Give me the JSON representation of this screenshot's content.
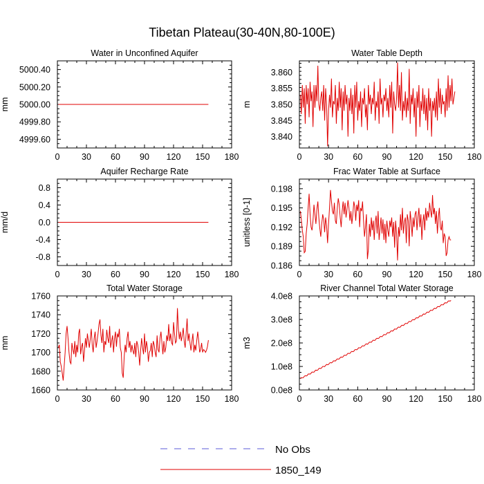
{
  "page": {
    "title": "Tibetan Plateau(30-40N,80-100E)"
  },
  "legend": {
    "items": [
      {
        "label": "No Obs",
        "color": "#5a5ad8",
        "dashed": true
      },
      {
        "label": "1850_149",
        "color": "#e00000",
        "dashed": false
      }
    ]
  },
  "colors": {
    "series": "#e00000",
    "axis": "#000000"
  },
  "chart_data": [
    {
      "type": "line",
      "title": "Water in Unconfined Aquifer",
      "ylabel": "mm",
      "xlim": [
        0,
        180
      ],
      "ylim": [
        4999.5,
        5000.5
      ],
      "xticks": [
        0,
        30,
        60,
        90,
        120,
        150,
        180
      ],
      "xtick_labels": [
        "0",
        "30",
        "60",
        "90",
        "120",
        "150",
        "180"
      ],
      "yticks": [
        4999.6,
        4999.8,
        5000.0,
        5000.2,
        5000.4
      ],
      "ytick_labels": [
        "4999.60",
        "4999.80",
        "5000.00",
        "5000.20",
        "5000.40"
      ],
      "series": [
        {
          "name": "1850_149",
          "x_start": 1,
          "x_step": 1,
          "constant": 5000.0,
          "count": 156
        }
      ]
    },
    {
      "type": "line",
      "title": "Water Table Depth",
      "ylabel": "m",
      "xlim": [
        0,
        180
      ],
      "ylim": [
        3.8365,
        3.8635
      ],
      "xticks": [
        0,
        30,
        60,
        90,
        120,
        150,
        180
      ],
      "xtick_labels": [
        "0",
        "30",
        "60",
        "90",
        "120",
        "150",
        "180"
      ],
      "yticks": [
        3.84,
        3.845,
        3.85,
        3.855,
        3.86
      ],
      "ytick_labels": [
        "3.840",
        "3.845",
        "3.850",
        "3.855",
        "3.860"
      ],
      "series": [
        {
          "name": "1850_149",
          "x_start": 1,
          "x_step": 1,
          "values": [
            3.853,
            3.847,
            3.856,
            3.849,
            3.855,
            3.844,
            3.856,
            3.85,
            3.855,
            3.846,
            3.857,
            3.851,
            3.854,
            3.843,
            3.856,
            3.849,
            3.856,
            3.851,
            3.862,
            3.85,
            3.848,
            3.852,
            3.854,
            3.848,
            3.856,
            3.845,
            3.855,
            3.85,
            3.837,
            3.848,
            3.853,
            3.849,
            3.858,
            3.846,
            3.851,
            3.85,
            3.856,
            3.844,
            3.852,
            3.848,
            3.857,
            3.849,
            3.855,
            3.842,
            3.854,
            3.848,
            3.856,
            3.85,
            3.853,
            3.84,
            3.852,
            3.848,
            3.855,
            3.847,
            3.853,
            3.841,
            3.856,
            3.849,
            3.857,
            3.845,
            3.851,
            3.848,
            3.854,
            3.843,
            3.852,
            3.85,
            3.855,
            3.846,
            3.85,
            3.842,
            3.856,
            3.85,
            3.853,
            3.847,
            3.852,
            3.85,
            3.857,
            3.845,
            3.851,
            3.849,
            3.854,
            3.844,
            3.858,
            3.85,
            3.852,
            3.846,
            3.853,
            3.851,
            3.855,
            3.848,
            3.852,
            3.846,
            3.856,
            3.849,
            3.857,
            3.841,
            3.854,
            3.85,
            3.848,
            3.852,
            3.863,
            3.849,
            3.856,
            3.848,
            3.86,
            3.845,
            3.851,
            3.848,
            3.854,
            3.846,
            3.852,
            3.848,
            3.861,
            3.844,
            3.853,
            3.85,
            3.855,
            3.846,
            3.852,
            3.84,
            3.854,
            3.849,
            3.856,
            3.843,
            3.851,
            3.848,
            3.855,
            3.847,
            3.853,
            3.845,
            3.852,
            3.842,
            3.855,
            3.848,
            3.852,
            3.84,
            3.851,
            3.848,
            3.852,
            3.846,
            3.854,
            3.845,
            3.858,
            3.849,
            3.855,
            3.847,
            3.853,
            3.85,
            3.851,
            3.846,
            3.855,
            3.848,
            3.859,
            3.849,
            3.856,
            3.851,
            3.858,
            3.85,
            3.852,
            3.854
          ]
        }
      ]
    },
    {
      "type": "line",
      "title": "Aquifer Recharge Rate",
      "ylabel": "mm/d",
      "xlim": [
        0,
        180
      ],
      "ylim": [
        -1.0,
        1.0
      ],
      "xticks": [
        0,
        30,
        60,
        90,
        120,
        150,
        180
      ],
      "xtick_labels": [
        "0",
        "30",
        "60",
        "90",
        "120",
        "150",
        "180"
      ],
      "yticks": [
        -0.8,
        -0.4,
        0.0,
        0.4,
        0.8
      ],
      "ytick_labels": [
        "-0.8",
        "-0.4",
        "0.0",
        "0.4",
        "0.8"
      ],
      "series": [
        {
          "name": "1850_149",
          "x_start": 1,
          "x_step": 1,
          "constant": 0.0,
          "count": 156
        }
      ]
    },
    {
      "type": "line",
      "title": "Frac Water Table at Surface",
      "ylabel": "unitless [0-1]",
      "xlim": [
        0,
        180
      ],
      "ylim": [
        0.186,
        0.1995
      ],
      "xticks": [
        0,
        30,
        60,
        90,
        120,
        150,
        180
      ],
      "xtick_labels": [
        "0",
        "30",
        "60",
        "90",
        "120",
        "150",
        "180"
      ],
      "yticks": [
        0.186,
        0.189,
        0.192,
        0.195,
        0.198
      ],
      "ytick_labels": [
        "0.186",
        "0.189",
        "0.192",
        "0.195",
        "0.198"
      ],
      "series": [
        {
          "name": "1850_149",
          "x_start": 1,
          "x_step": 1,
          "values": [
            0.1945,
            0.1932,
            0.1915,
            0.1905,
            0.188,
            0.1882,
            0.191,
            0.1925,
            0.195,
            0.1972,
            0.194,
            0.192,
            0.1915,
            0.193,
            0.1955,
            0.194,
            0.1925,
            0.1948,
            0.196,
            0.1935,
            0.1918,
            0.1905,
            0.1925,
            0.194,
            0.1932,
            0.1912,
            0.1935,
            0.1922,
            0.1895,
            0.1925,
            0.195,
            0.1978,
            0.196,
            0.1945,
            0.194,
            0.1958,
            0.193,
            0.1925,
            0.195,
            0.1965,
            0.1955,
            0.1935,
            0.192,
            0.1945,
            0.196,
            0.194,
            0.1958,
            0.1935,
            0.1948,
            0.1962,
            0.195,
            0.193,
            0.1945,
            0.1925,
            0.194,
            0.196,
            0.1952,
            0.193,
            0.1955,
            0.1945,
            0.1962,
            0.192,
            0.195,
            0.1945,
            0.196,
            0.193,
            0.1905,
            0.192,
            0.194,
            0.187,
            0.1885,
            0.1925,
            0.1905,
            0.1935,
            0.1915,
            0.193,
            0.19,
            0.1928,
            0.1938,
            0.191,
            0.1945,
            0.19,
            0.1918,
            0.1935,
            0.191,
            0.1932,
            0.19,
            0.1925,
            0.1895,
            0.193,
            0.1915,
            0.1905,
            0.193,
            0.192,
            0.1935,
            0.1905,
            0.1928,
            0.1888,
            0.193,
            0.191,
            0.1868,
            0.192,
            0.1905,
            0.194,
            0.1915,
            0.195,
            0.191,
            0.1928,
            0.1935,
            0.1895,
            0.194,
            0.193,
            0.189,
            0.1945,
            0.193,
            0.1905,
            0.1935,
            0.192,
            0.194,
            0.1945,
            0.1915,
            0.1935,
            0.195,
            0.192,
            0.194,
            0.19,
            0.1928,
            0.194,
            0.1915,
            0.195,
            0.193,
            0.1945,
            0.1935,
            0.1958,
            0.1945,
            0.1935,
            0.197,
            0.194,
            0.195,
            0.1925,
            0.1945,
            0.191,
            0.1935,
            0.195,
            0.192,
            0.1915,
            0.193,
            0.1895,
            0.191,
            0.1905,
            0.1875,
            0.188,
            0.19,
            0.1905,
            0.19,
            0.19
          ]
        }
      ]
    },
    {
      "type": "line",
      "title": "Total Water Storage",
      "ylabel": "mm",
      "xlim": [
        0,
        180
      ],
      "ylim": [
        1660,
        1760
      ],
      "xticks": [
        0,
        30,
        60,
        90,
        120,
        150,
        180
      ],
      "xtick_labels": [
        "0",
        "30",
        "60",
        "90",
        "120",
        "150",
        "180"
      ],
      "yticks": [
        1660,
        1680,
        1700,
        1720,
        1740,
        1760
      ],
      "ytick_labels": [
        "1660",
        "1680",
        "1700",
        "1720",
        "1740",
        "1760"
      ],
      "series": [
        {
          "name": "1850_149",
          "x_start": 1,
          "x_step": 1,
          "values": [
            1705,
            1708,
            1690,
            1685,
            1678,
            1670,
            1685,
            1700,
            1720,
            1728,
            1715,
            1700,
            1690,
            1688,
            1710,
            1703,
            1698,
            1712,
            1695,
            1708,
            1700,
            1720,
            1725,
            1698,
            1706,
            1710,
            1690,
            1702,
            1715,
            1705,
            1720,
            1712,
            1705,
            1715,
            1725,
            1708,
            1700,
            1715,
            1722,
            1705,
            1712,
            1720,
            1730,
            1735,
            1718,
            1710,
            1725,
            1700,
            1712,
            1708,
            1724,
            1715,
            1710,
            1728,
            1705,
            1712,
            1718,
            1700,
            1715,
            1722,
            1706,
            1720,
            1716,
            1725,
            1705,
            1700,
            1678,
            1673,
            1695,
            1708,
            1700,
            1715,
            1722,
            1705,
            1712,
            1700,
            1708,
            1702,
            1698,
            1710,
            1695,
            1712,
            1708,
            1700,
            1686,
            1702,
            1715,
            1705,
            1698,
            1720,
            1700,
            1712,
            1705,
            1690,
            1700,
            1702,
            1710,
            1695,
            1712,
            1708,
            1700,
            1695,
            1718,
            1703,
            1700,
            1715,
            1722,
            1710,
            1698,
            1712,
            1700,
            1705,
            1718,
            1712,
            1730,
            1712,
            1720,
            1710,
            1708,
            1732,
            1720,
            1710,
            1712,
            1747,
            1725,
            1714,
            1722,
            1712,
            1718,
            1726,
            1712,
            1705,
            1720,
            1736,
            1712,
            1720,
            1710,
            1702,
            1712,
            1720,
            1700,
            1708,
            1702,
            1713,
            1722,
            1712,
            1700,
            1703,
            1710,
            1700,
            1703,
            1702,
            1700,
            1702,
            1706,
            1713
          ]
        }
      ]
    },
    {
      "type": "line",
      "title": "River Channel Total Water Storage",
      "ylabel": "m3",
      "xlim": [
        0,
        180
      ],
      "ylim": [
        0,
        400000000.0
      ],
      "xticks": [
        0,
        30,
        60,
        90,
        120,
        150,
        180
      ],
      "xtick_labels": [
        "0",
        "30",
        "60",
        "90",
        "120",
        "150",
        "180"
      ],
      "yticks": [
        0,
        100000000.0,
        200000000.0,
        300000000.0,
        400000000.0
      ],
      "ytick_labels": [
        "0.0e8",
        "1.0e8",
        "2.0e8",
        "3.0e8",
        "4.0e8"
      ],
      "series": [
        {
          "name": "1850_149",
          "x_start": 1,
          "x_step": 1,
          "linear_from": 48000000.0,
          "linear_to": 382000000.0,
          "count": 156
        }
      ]
    }
  ]
}
